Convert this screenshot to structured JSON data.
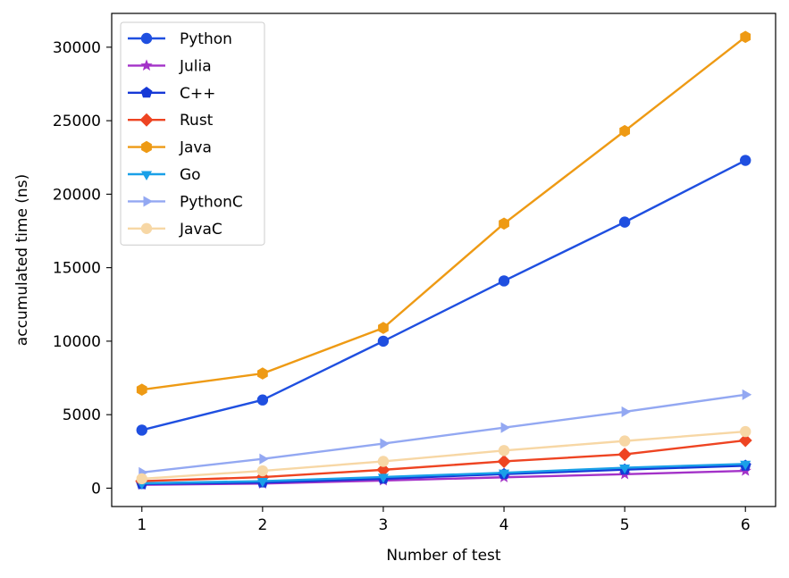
{
  "chart_data": {
    "type": "line",
    "xlabel": "Number of test",
    "ylabel": "accumulated time (ns)",
    "x": [
      1,
      2,
      3,
      4,
      5,
      6
    ],
    "xlim": [
      0.75,
      6.25
    ],
    "ylim": [
      -1250,
      32300
    ],
    "xticks": [
      1,
      2,
      3,
      4,
      5,
      6
    ],
    "yticks": [
      0,
      5000,
      10000,
      15000,
      20000,
      25000,
      30000
    ],
    "grid": false,
    "legend_position": "top-left",
    "series": [
      {
        "name": "Python",
        "color": "#1f4fe0",
        "marker": "circle",
        "values": [
          3950,
          6000,
          10000,
          14100,
          18100,
          22300
        ]
      },
      {
        "name": "Julia",
        "color": "#a332c8",
        "marker": "star",
        "values": [
          230,
          310,
          520,
          740,
          950,
          1180
        ]
      },
      {
        "name": "C++",
        "color": "#1538d6",
        "marker": "pentagon",
        "values": [
          280,
          380,
          640,
          960,
          1260,
          1530
        ]
      },
      {
        "name": "Rust",
        "color": "#ee4422",
        "marker": "diamond",
        "values": [
          480,
          750,
          1250,
          1820,
          2300,
          3250
        ]
      },
      {
        "name": "Java",
        "color": "#ee9a14",
        "marker": "hexagon",
        "values": [
          6700,
          7800,
          10900,
          18000,
          24300,
          30700
        ]
      },
      {
        "name": "Go",
        "color": "#1aa0e8",
        "marker": "triangle-down",
        "values": [
          330,
          480,
          760,
          1050,
          1390,
          1650
        ]
      },
      {
        "name": "PythonC",
        "color": "#93a8f2",
        "marker": "triangle-right",
        "values": [
          1070,
          1990,
          3030,
          4120,
          5200,
          6360
        ]
      },
      {
        "name": "JavaC",
        "color": "#f7d7a5",
        "marker": "circle",
        "values": [
          640,
          1180,
          1820,
          2560,
          3210,
          3850
        ]
      }
    ]
  }
}
